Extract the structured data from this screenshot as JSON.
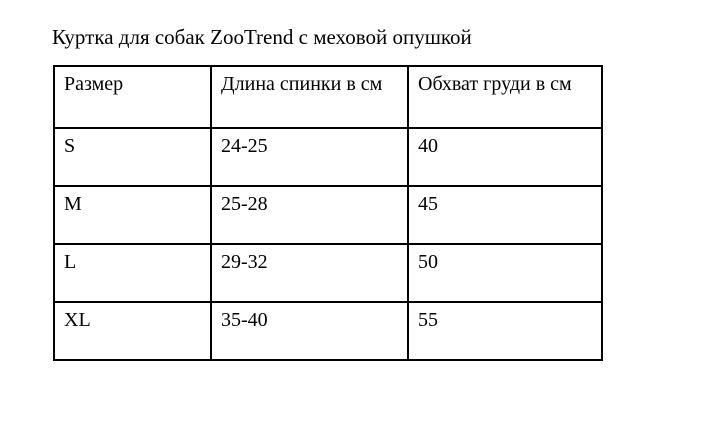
{
  "page": {
    "title": "Куртка для собак ZooTrend с меховой опушкой"
  },
  "table": {
    "columns": [
      "Размер",
      "Длина спинки в см",
      "Обхват груди в см"
    ],
    "rows": [
      [
        "S",
        "24-25",
        "40"
      ],
      [
        "M",
        "25-28",
        "45"
      ],
      [
        "L",
        "29-32",
        "50"
      ],
      [
        "XL",
        "35-40",
        "55"
      ]
    ]
  },
  "colors": {
    "text": "#000000",
    "background": "#ffffff",
    "table_border": "#000000"
  }
}
